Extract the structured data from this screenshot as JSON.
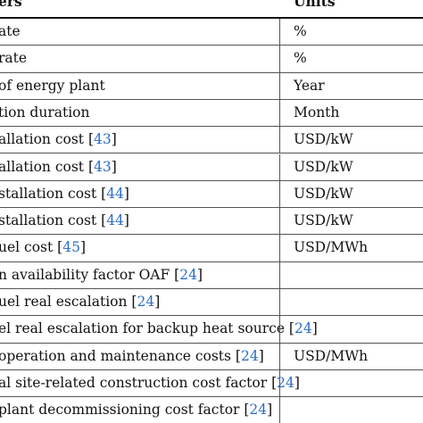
{
  "table": {
    "headers": {
      "parameter": "ers",
      "units": "Units"
    },
    "rows": [
      {
        "label": "ate",
        "cite": "",
        "units": "%"
      },
      {
        "label": " rate",
        "cite": "",
        "units": "%"
      },
      {
        "label": "of energy plant",
        "cite": "",
        "units": "Year"
      },
      {
        "label": "tion duration",
        "cite": "",
        "units": "Month"
      },
      {
        "label": "allation cost [",
        "cite": "43",
        "tail": "]",
        "units": "USD/kW"
      },
      {
        "label": "allation cost [",
        "cite": "43",
        "tail": "]",
        "units": "USD/kW"
      },
      {
        "label": "stallation cost [",
        "cite": "44",
        "tail": "]",
        "units": "USD/kW"
      },
      {
        "label": "stallation cost [",
        "cite": "44",
        "tail": "]",
        "units": "USD/kW"
      },
      {
        "label": "uel cost [",
        "cite": "45",
        "tail": "]",
        "units": "USD/MWh"
      },
      {
        "label": "n availability factor OAF [",
        "cite": "24",
        "tail": "]",
        "units": ""
      },
      {
        "label": "uel real escalation [",
        "cite": "24",
        "tail": "]",
        "units": ""
      },
      {
        "label": "el real escalation for backup heat source [",
        "cite": "24",
        "tail": "]",
        "units": ""
      },
      {
        "label": "operation and maintenance costs [",
        "cite": "24",
        "tail": "]",
        "units": "USD/MWh"
      },
      {
        "label": "al site-related construction cost factor [",
        "cite": "24",
        "tail": "]",
        "units": ""
      },
      {
        "label": "plant decommissioning cost factor [",
        "cite": "24",
        "tail": "]",
        "units": ""
      }
    ]
  },
  "colors": {
    "citation": "#2a6cc7",
    "text": "#111111",
    "rule": "#555555"
  }
}
